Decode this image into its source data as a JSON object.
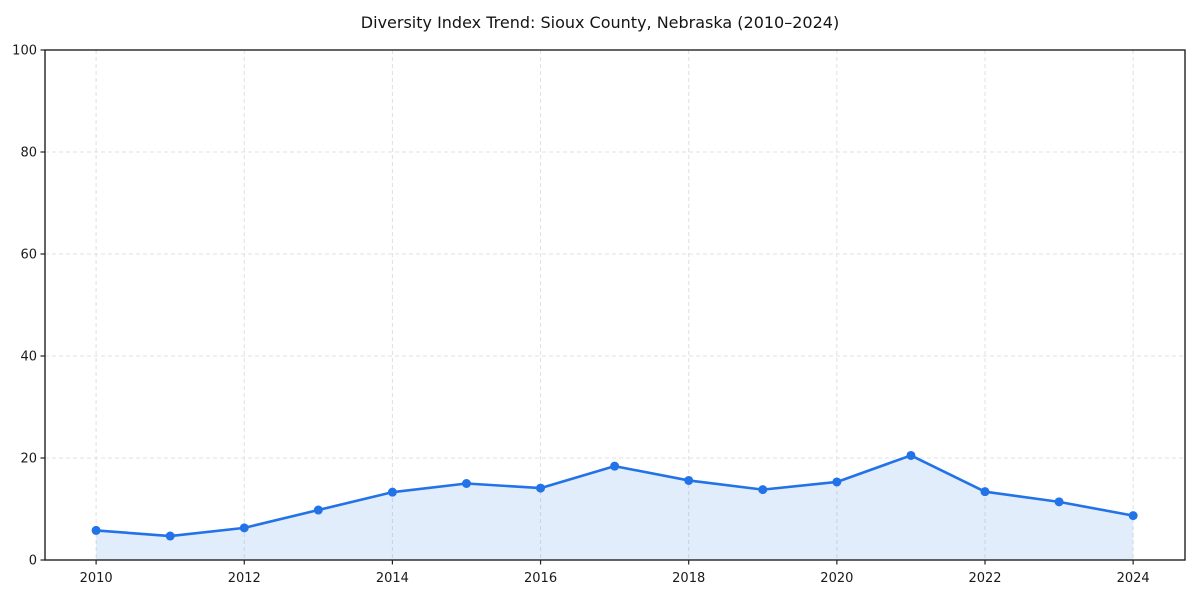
{
  "chart_data": {
    "type": "line",
    "title": "Diversity Index Trend: Sioux County, Nebraska (2010–2024)",
    "x": [
      2010,
      2011,
      2012,
      2013,
      2014,
      2015,
      2016,
      2017,
      2018,
      2019,
      2020,
      2021,
      2022,
      2023,
      2024
    ],
    "series": [
      {
        "name": "Diversity Index",
        "values": [
          5.8,
          4.7,
          6.3,
          9.8,
          13.3,
          15.0,
          14.1,
          18.4,
          15.6,
          13.8,
          15.3,
          20.5,
          13.4,
          11.4,
          8.7
        ]
      }
    ],
    "xlabel": "",
    "ylabel": "",
    "xlim": [
      2009.31,
      2024.7
    ],
    "ylim": [
      0,
      100
    ],
    "x_ticks": [
      2010,
      2012,
      2014,
      2016,
      2018,
      2020,
      2022,
      2024
    ],
    "y_ticks": [
      0,
      20,
      40,
      60,
      80,
      100
    ],
    "grid": true,
    "grid_style": "dashed",
    "legend": false,
    "marker": "circle",
    "colors": {
      "line": "#2272e8",
      "marker": "#2272e8",
      "area_fill": "#2272e8",
      "area_fill_opacity": 0.13,
      "grid": "#e0e0e0",
      "axis": "#222222",
      "tick_text": "#1a1a1a",
      "background": "#ffffff"
    }
  }
}
